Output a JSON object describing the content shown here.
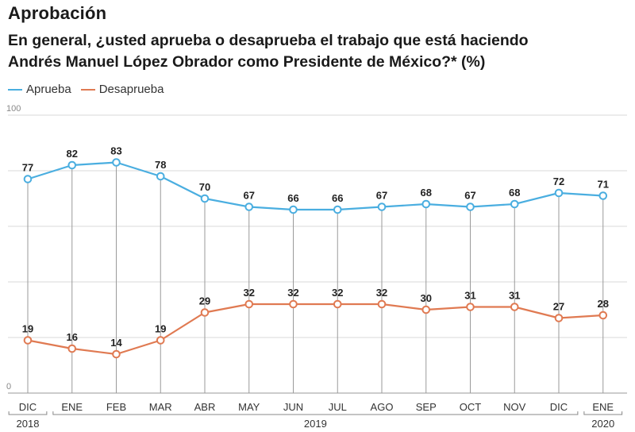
{
  "header": {
    "title": "Aprobación",
    "subtitle_line1": "En general, ¿usted aprueba o desaprueba el trabajo que está haciendo",
    "subtitle_line2": "Andrés Manuel López Obrador como Presidente de México?*  (%)"
  },
  "legend": {
    "items": [
      {
        "label": "Aprueba",
        "color": "#4aaee0"
      },
      {
        "label": "Desaprueba",
        "color": "#e07a52"
      }
    ]
  },
  "chart_data": {
    "type": "line",
    "categories": [
      "DIC",
      "ENE",
      "FEB",
      "MAR",
      "ABR",
      "MAY",
      "JUN",
      "JUL",
      "AGO",
      "SEP",
      "OCT",
      "NOV",
      "DIC",
      "ENE"
    ],
    "year_groups": [
      {
        "label": "2018",
        "start": 0,
        "end": 0
      },
      {
        "label": "2019",
        "start": 1,
        "end": 12
      },
      {
        "label": "2020",
        "start": 13,
        "end": 13
      }
    ],
    "series": [
      {
        "name": "Aprueba",
        "color": "#4aaee0",
        "values": [
          77,
          82,
          83,
          78,
          70,
          67,
          66,
          66,
          67,
          68,
          67,
          68,
          72,
          71
        ]
      },
      {
        "name": "Desaprueba",
        "color": "#e07a52",
        "values": [
          19,
          16,
          14,
          19,
          29,
          32,
          32,
          32,
          32,
          30,
          31,
          31,
          27,
          28
        ]
      }
    ],
    "ylim": [
      0,
      100
    ],
    "yticks": [
      0,
      100
    ],
    "grid": true,
    "legend_position": "top-left"
  }
}
